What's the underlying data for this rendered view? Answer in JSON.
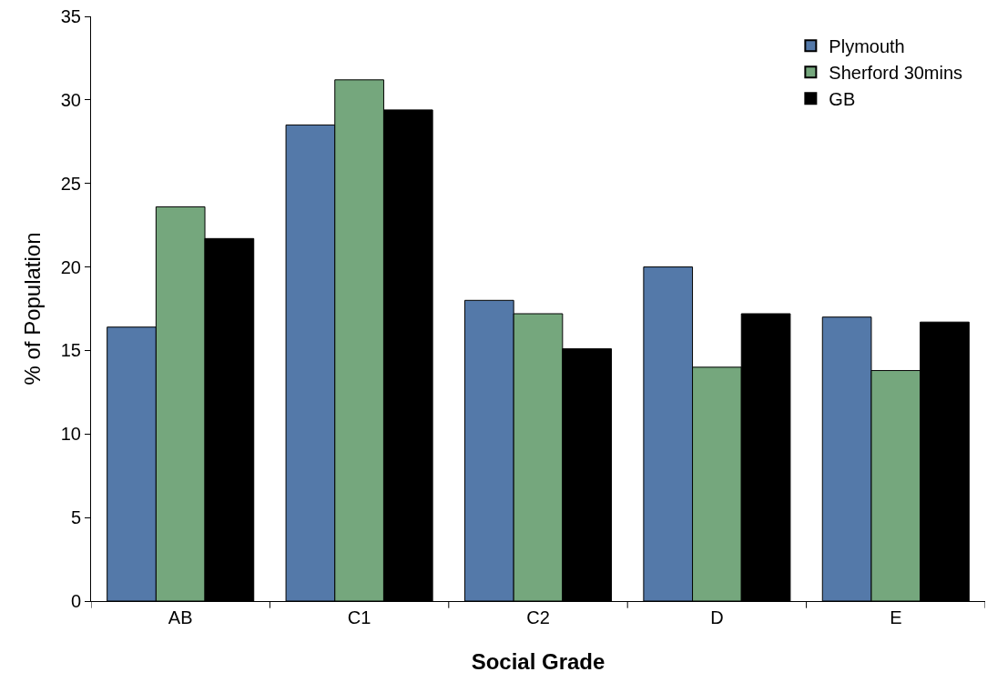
{
  "chart_data": {
    "type": "bar",
    "xlabel": "Social Grade",
    "ylabel": "% of Population",
    "categories": [
      "AB",
      "C1",
      "C2",
      "D",
      "E"
    ],
    "series": [
      {
        "name": "Plymouth",
        "color": "#5479a9",
        "values": [
          16.4,
          28.5,
          18.0,
          20.0,
          17.0
        ]
      },
      {
        "name": "Sherford 30mins",
        "color": "#75a77d",
        "values": [
          23.6,
          31.2,
          17.2,
          14.0,
          13.8
        ]
      },
      {
        "name": "GB",
        "color": "#000000",
        "values": [
          21.7,
          29.4,
          15.1,
          17.2,
          16.7
        ]
      }
    ],
    "ylim": [
      0,
      35
    ],
    "yticks": [
      0,
      5,
      10,
      15,
      20,
      25,
      30,
      35
    ],
    "legend": "top right"
  }
}
